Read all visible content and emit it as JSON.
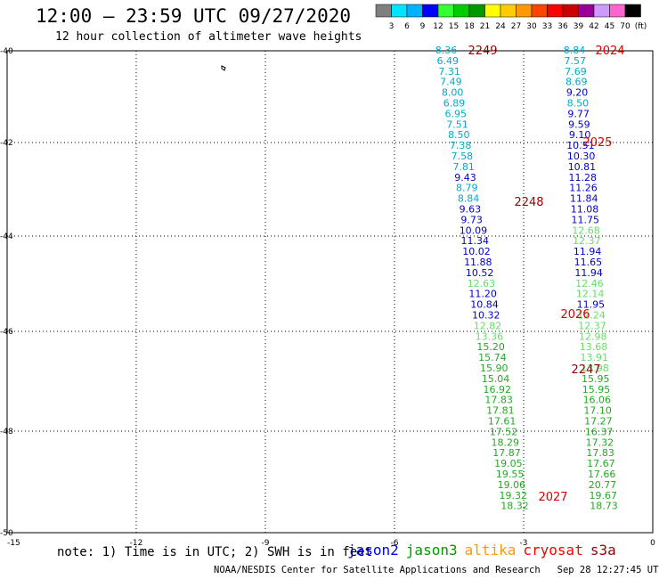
{
  "header": {
    "title": "12:00 – 23:59 UTC 09/27/2020",
    "subtitle": "12 hour collection of altimeter wave heights"
  },
  "colorbar": {
    "labels": [
      "3",
      "6",
      "9",
      "12",
      "15",
      "18",
      "21",
      "24",
      "27",
      "30",
      "33",
      "36",
      "39",
      "42",
      "45",
      "70",
      "(ft)"
    ],
    "colors": [
      "#7f7f7f",
      "#00e5ff",
      "#00b2ff",
      "#0000ff",
      "#33ff33",
      "#00cc00",
      "#009900",
      "#ffff00",
      "#ffcc00",
      "#ff9900",
      "#ff4400",
      "#ff0000",
      "#cc0000",
      "#990099",
      "#cc99ff",
      "#ff66cc",
      "#000000"
    ]
  },
  "map": {
    "lat_labels": [
      "-40",
      "-42",
      "-44",
      "-46",
      "-48",
      "-50"
    ],
    "lon_labels": [
      "-15",
      "-12",
      "-9",
      "-6",
      "-3",
      "0"
    ]
  },
  "tracks": [
    {
      "name": "left",
      "values": [
        "8.36",
        "6.49",
        "7.31",
        "7.49",
        "8.00",
        "6.89",
        "6.95",
        "7.51",
        "8.50",
        "7.38",
        "7.58",
        "7.81",
        "9.43",
        "8.79",
        "8.84",
        "9.63",
        "9.73",
        "10.09",
        "11.34",
        "10.02",
        "11.88",
        "10.52",
        "12.63",
        "11.20",
        "10.84",
        "10.32",
        "12.82",
        "13.36",
        "15.20",
        "15.74",
        "15.90",
        "15.04",
        "16.92",
        "17.83",
        "17.81",
        "17.61",
        "17.52",
        "18.29",
        "17.87",
        "19.05",
        "19.55",
        "19.06",
        "19.32",
        "18.32"
      ],
      "colors": [
        "#00aacc",
        "#00aacc",
        "#00aacc",
        "#00aacc",
        "#00aacc",
        "#00aacc",
        "#00aacc",
        "#00aacc",
        "#00aacc",
        "#00aacc",
        "#00aacc",
        "#00aacc",
        "#0000cc",
        "#00aacc",
        "#00aacc",
        "#0000cc",
        "#0000cc",
        "#0000cc",
        "#0000cc",
        "#0000cc",
        "#0000cc",
        "#0000cc",
        "#66dd66",
        "#0000cc",
        "#0000cc",
        "#0000cc",
        "#66dd66",
        "#66dd66",
        "#22aa22",
        "#22aa22",
        "#22aa22",
        "#22aa22",
        "#22aa22",
        "#22aa22",
        "#22aa22",
        "#22aa22",
        "#22aa22",
        "#22aa22",
        "#22aa22",
        "#22aa22",
        "#22aa22",
        "#22aa22",
        "#22aa22",
        "#22aa22"
      ]
    },
    {
      "name": "right",
      "values": [
        "8.84",
        "7.57",
        "7.69",
        "8.69",
        "9.20",
        "8.50",
        "9.77",
        "9.59",
        "9.10",
        "10.51",
        "10.30",
        "10.81",
        "11.28",
        "11.26",
        "11.84",
        "11.08",
        "11.75",
        "12.68",
        "12.37",
        "11.94",
        "11.65",
        "11.94",
        "12.46",
        "12.14",
        "11.95",
        "12.24",
        "12.37",
        "12.98",
        "13.68",
        "13.91",
        "13.98",
        "15.95",
        "15.95",
        "16.06",
        "17.10",
        "17.27",
        "16.37",
        "17.32",
        "17.83",
        "17.67",
        "17.66",
        "20.77",
        "19.67",
        "18.73"
      ],
      "colors": [
        "#00aacc",
        "#00aacc",
        "#00aacc",
        "#00aacc",
        "#0000cc",
        "#00aacc",
        "#0000cc",
        "#0000cc",
        "#0000cc",
        "#0000cc",
        "#0000cc",
        "#0000cc",
        "#0000cc",
        "#0000cc",
        "#0000cc",
        "#0000cc",
        "#0000cc",
        "#66dd66",
        "#66dd66",
        "#0000cc",
        "#0000cc",
        "#0000cc",
        "#66dd66",
        "#66dd66",
        "#0000cc",
        "#66dd66",
        "#66dd66",
        "#66dd66",
        "#66dd66",
        "#66dd66",
        "#66dd66",
        "#22aa22",
        "#22aa22",
        "#22aa22",
        "#22aa22",
        "#22aa22",
        "#22aa22",
        "#22aa22",
        "#22aa22",
        "#22aa22",
        "#22aa22",
        "#22aa22",
        "#22aa22",
        "#22aa22"
      ]
    }
  ],
  "time_labels": [
    {
      "text": "2249",
      "color": "#990000"
    },
    {
      "text": "2024",
      "color": "#dd0000"
    },
    {
      "text": "2025",
      "color": "#dd0000"
    },
    {
      "text": "2248",
      "color": "#990000"
    },
    {
      "text": "2026",
      "color": "#dd0000"
    },
    {
      "text": "2247",
      "color": "#990000"
    },
    {
      "text": "2027",
      "color": "#dd0000"
    }
  ],
  "footer": {
    "note": "note: 1) Time is in UTC; 2) SWH is in feet",
    "legend": [
      {
        "name": "jason2",
        "color": "#0000ff"
      },
      {
        "name": "jason3",
        "color": "#009900"
      },
      {
        "name": "altika",
        "color": "#ff9900"
      },
      {
        "name": "cryosat",
        "color": "#ff0000"
      },
      {
        "name": "s3a",
        "color": "#990000"
      }
    ],
    "credit": "NOAA/NESDIS Center for Satellite Applications and Research",
    "timestamp": "Sep 28 12:27:45 UTC 2020"
  }
}
